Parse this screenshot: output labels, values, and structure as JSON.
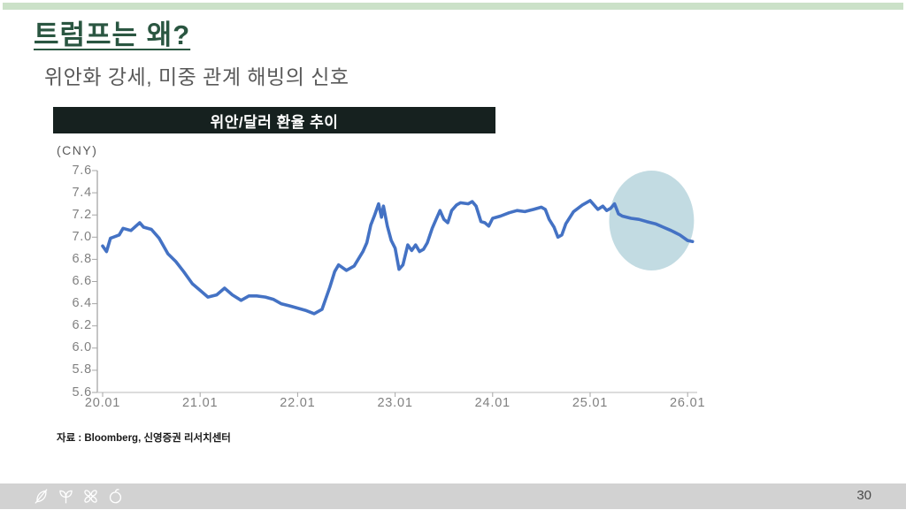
{
  "slide": {
    "title": "트럼프는 왜?",
    "subtitle": "위안화 강세, 미중 관계 해빙의 신호",
    "source": "자료 : Bloomberg, 신영증권 리서치센터",
    "page_number": "30"
  },
  "colors": {
    "top_bar": "#cbe1c8",
    "title_text": "#2a5641",
    "subtitle_text": "#595959",
    "chart_header_bg": "#16211f",
    "chart_header_text": "#ffffff",
    "line": "#4472c4",
    "highlight_ellipse": "#c2dbe2",
    "axis_text": "#808080",
    "y_axis_line": "#a6a6a6",
    "x_axis_line": "#c8c8c8",
    "footer_bg": "#d2d2d2"
  },
  "footer": {
    "icons": [
      "leaf-icon",
      "sprout-icon",
      "clover-icon",
      "fruit-icon"
    ]
  },
  "chart_data": {
    "type": "line",
    "title": "위안/달러 환율 추이",
    "unit_label": "(CNY)",
    "xlabel": "",
    "ylabel": "",
    "ylim": [
      5.6,
      7.6
    ],
    "y_ticks": [
      "7.6",
      "7.4",
      "7.2",
      "7.0",
      "6.8",
      "6.6",
      "6.4",
      "6.2",
      "6.0",
      "5.8",
      "5.6"
    ],
    "x_ticks": [
      "20.01",
      "21.01",
      "22.01",
      "23.01",
      "24.01",
      "25.01",
      "26.01"
    ],
    "x_tick_years": [
      0,
      1,
      2,
      3,
      4,
      5,
      6
    ],
    "x_range_years": [
      0,
      6.05
    ],
    "grid": false,
    "legend": "none",
    "series": [
      {
        "x": [
          0.0,
          0.04,
          0.08,
          0.17,
          0.21,
          0.29,
          0.38,
          0.42,
          0.5,
          0.58,
          0.67,
          0.75,
          0.83,
          0.92,
          1.0,
          1.08,
          1.17,
          1.25,
          1.33,
          1.42,
          1.5,
          1.58,
          1.67,
          1.75,
          1.83,
          1.92,
          2.0,
          2.08,
          2.17,
          2.25,
          2.33,
          2.38,
          2.42,
          2.5,
          2.58,
          2.67,
          2.71,
          2.75,
          2.79,
          2.83,
          2.86,
          2.88,
          2.92,
          2.96,
          3.0,
          3.04,
          3.08,
          3.13,
          3.17,
          3.21,
          3.25,
          3.29,
          3.33,
          3.38,
          3.42,
          3.46,
          3.5,
          3.54,
          3.58,
          3.63,
          3.67,
          3.75,
          3.79,
          3.83,
          3.88,
          3.92,
          3.96,
          4.0,
          4.08,
          4.17,
          4.25,
          4.33,
          4.42,
          4.5,
          4.54,
          4.58,
          4.63,
          4.67,
          4.71,
          4.75,
          4.83,
          4.92,
          5.0,
          5.04,
          5.08,
          5.13,
          5.17,
          5.21,
          5.25,
          5.29,
          5.33,
          5.42,
          5.5,
          5.58,
          5.67,
          5.75,
          5.83,
          5.92,
          6.0,
          6.05
        ],
        "values": [
          6.92,
          6.87,
          6.99,
          7.02,
          7.08,
          7.06,
          7.13,
          7.09,
          7.07,
          6.99,
          6.85,
          6.78,
          6.69,
          6.58,
          6.52,
          6.46,
          6.48,
          6.54,
          6.48,
          6.43,
          6.47,
          6.47,
          6.46,
          6.44,
          6.4,
          6.38,
          6.36,
          6.34,
          6.31,
          6.35,
          6.55,
          6.69,
          6.75,
          6.7,
          6.74,
          6.87,
          6.95,
          7.11,
          7.2,
          7.3,
          7.18,
          7.28,
          7.1,
          6.97,
          6.9,
          6.71,
          6.75,
          6.93,
          6.88,
          6.93,
          6.87,
          6.89,
          6.95,
          7.08,
          7.16,
          7.24,
          7.16,
          7.13,
          7.24,
          7.29,
          7.31,
          7.3,
          7.32,
          7.28,
          7.14,
          7.13,
          7.1,
          7.17,
          7.19,
          7.22,
          7.24,
          7.23,
          7.25,
          7.27,
          7.25,
          7.16,
          7.09,
          7.0,
          7.02,
          7.12,
          7.23,
          7.29,
          7.33,
          7.29,
          7.25,
          7.28,
          7.24,
          7.26,
          7.3,
          7.21,
          7.19,
          7.17,
          7.16,
          7.14,
          7.12,
          7.09,
          7.06,
          7.02,
          6.97,
          6.96
        ]
      }
    ],
    "highlight": {
      "shape": "ellipse",
      "center_x_year": 5.63,
      "center_value": 7.15,
      "rx_years": 0.435,
      "ry_value": 0.45
    }
  }
}
